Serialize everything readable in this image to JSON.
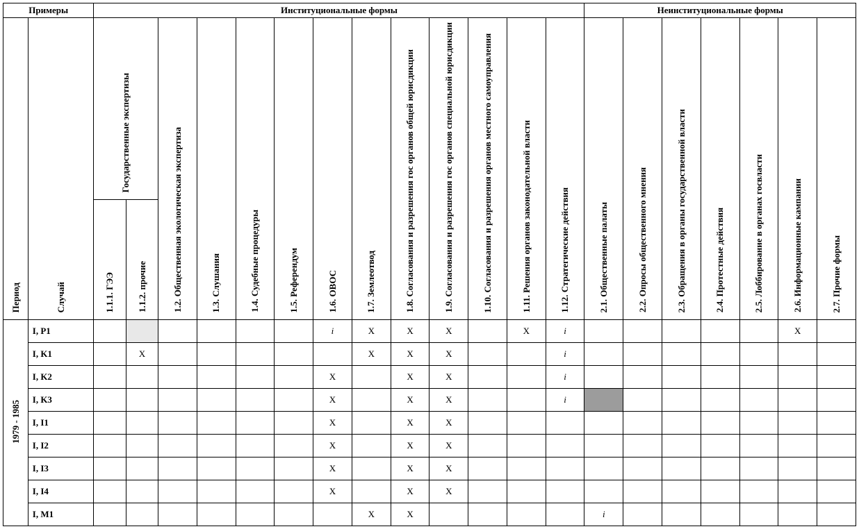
{
  "header": {
    "examples": "Примеры",
    "institutional": "Институциональные формы",
    "noninstitutional": "Неинституциональные формы",
    "state_exp": "Государственные экспертизы",
    "period": "Период",
    "case": "Случай"
  },
  "columns": [
    "1.1.1. ГЭЭ",
    "1.1.2. прочие",
    "1.2. Общественная экологическая экспертиза",
    "1.3. Слушания",
    "1.4. Судебные процедуры",
    "1.5. Референдум",
    "1.6. ОВОС",
    "1.7. Землеотвод",
    "1.8. Согласования и разрешения гос органов общей юрисдикции",
    "1.9. Согласования и разрешения гос органов специальной юрисдикции",
    "1.10. Согласования и разрешения органов местного самоуправления",
    "1.11. Решения органов законодательной власти",
    "1.12. Стратегические действия",
    "2.1. Общественные палаты",
    "2.2. Опросы общественного мнения",
    "2.3. Обращения в органы государственной власти",
    "2.4. Протестные действия",
    "2.5. Лоббирование в органах госвласти",
    "2.6. Информационные кампании",
    "2.7. Прочие формы"
  ],
  "period_label": "1979 - 1985",
  "rows": [
    {
      "case": "I, P1",
      "cells": [
        "",
        {
          "fill": "light"
        },
        "",
        "",
        "",
        "",
        {
          "text": "i",
          "italic": true
        },
        "X",
        "X",
        "X",
        "",
        "X",
        {
          "text": "i",
          "italic": true
        },
        "",
        "",
        "",
        "",
        "",
        "X",
        ""
      ]
    },
    {
      "case": "I, K1",
      "cells": [
        "",
        "X",
        "",
        "",
        "",
        "",
        "",
        "X",
        "X",
        "X",
        "",
        "",
        {
          "text": "i",
          "italic": true
        },
        "",
        "",
        "",
        "",
        "",
        "",
        ""
      ]
    },
    {
      "case": "I, K2",
      "cells": [
        "",
        "",
        "",
        "",
        "",
        "",
        "X",
        "",
        "X",
        "X",
        "",
        "",
        {
          "text": "i",
          "italic": true
        },
        "",
        "",
        "",
        "",
        "",
        "",
        ""
      ]
    },
    {
      "case": "I, K3",
      "cells": [
        "",
        "",
        "",
        "",
        "",
        "",
        "X",
        "",
        "X",
        "X",
        "",
        "",
        {
          "text": "i",
          "italic": true
        },
        {
          "fill": "dark"
        },
        "",
        "",
        "",
        "",
        "",
        ""
      ]
    },
    {
      "case": "I, I1",
      "cells": [
        "",
        "",
        "",
        "",
        "",
        "",
        "X",
        "",
        "X",
        "X",
        "",
        "",
        "",
        "",
        "",
        "",
        "",
        "",
        "",
        ""
      ]
    },
    {
      "case": "I, I2",
      "cells": [
        "",
        "",
        "",
        "",
        "",
        "",
        "X",
        "",
        "X",
        "X",
        "",
        "",
        "",
        "",
        "",
        "",
        "",
        "",
        "",
        ""
      ]
    },
    {
      "case": "I, I3",
      "cells": [
        "",
        "",
        "",
        "",
        "",
        "",
        "X",
        "",
        "X",
        "X",
        "",
        "",
        "",
        "",
        "",
        "",
        "",
        "",
        "",
        ""
      ]
    },
    {
      "case": "I, I4",
      "cells": [
        "",
        "",
        "",
        "",
        "",
        "",
        "X",
        "",
        "X",
        "X",
        "",
        "",
        "",
        "",
        "",
        "",
        "",
        "",
        "",
        ""
      ]
    },
    {
      "case": "I, M1",
      "cells": [
        "",
        "",
        "",
        "",
        "",
        "",
        "",
        "X",
        "X",
        "",
        "",
        "",
        "",
        {
          "text": "i",
          "italic": true
        },
        "",
        "",
        "",
        "",
        "",
        ""
      ]
    }
  ],
  "col_widths": {
    "period": 34,
    "case": 90,
    "sub11": 44,
    "data": 53
  }
}
